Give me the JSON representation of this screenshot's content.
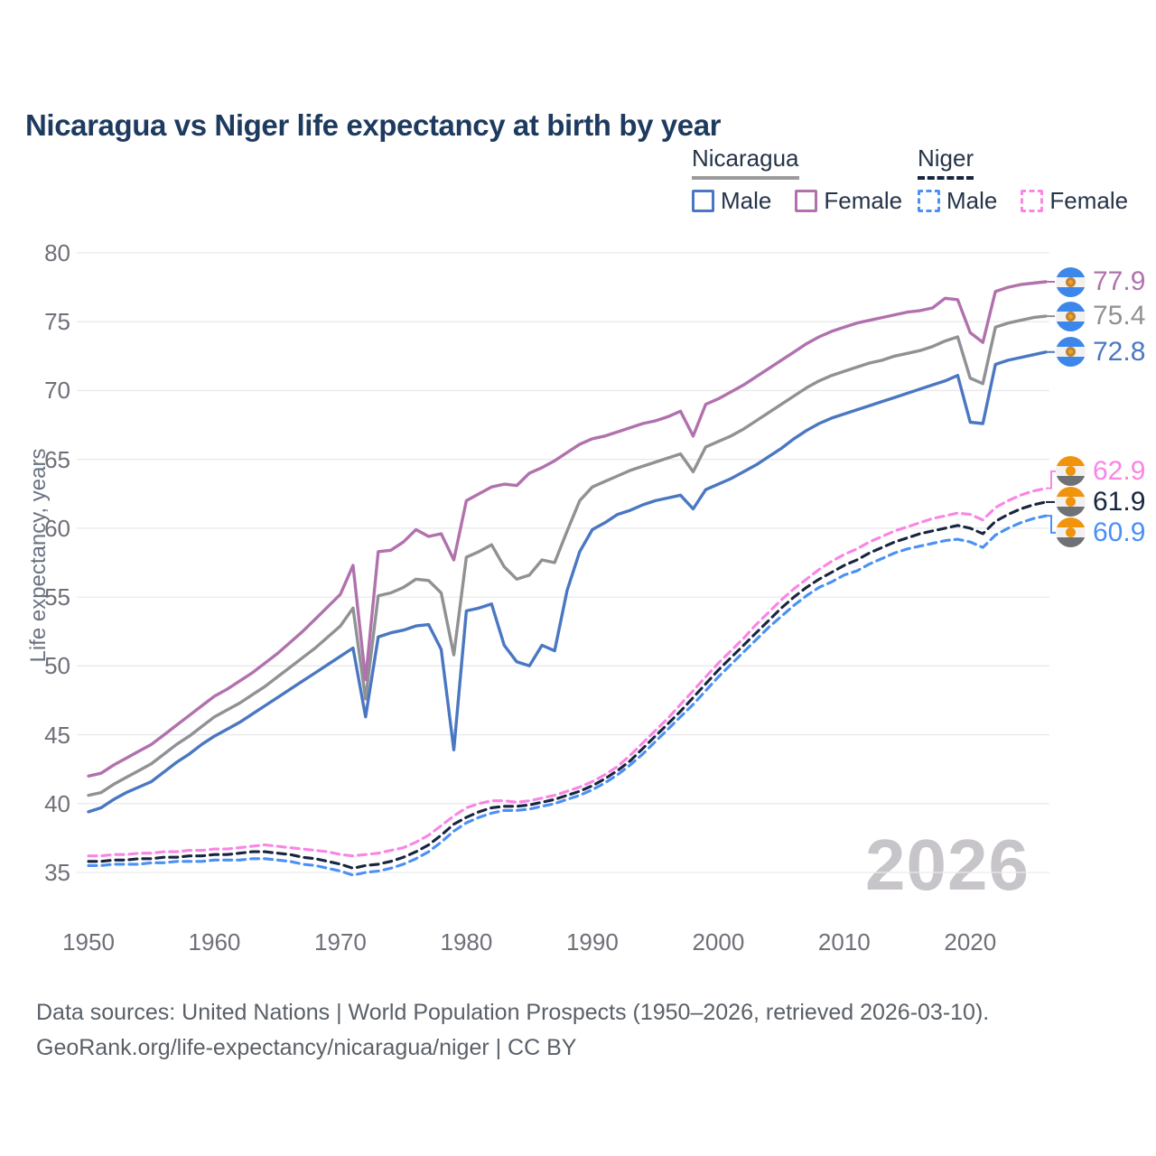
{
  "title": "Nicaragua vs Niger life expectancy at birth by year",
  "watermark": "2026",
  "y_axis": {
    "title": "Life expectancy, years",
    "ticks": [
      80,
      75,
      70,
      65,
      60,
      55,
      50,
      45,
      40,
      35
    ]
  },
  "x_axis": {
    "ticks": [
      "1950",
      "1960",
      "1970",
      "1980",
      "1990",
      "2000",
      "2010",
      "2020"
    ]
  },
  "legend": {
    "groups": [
      {
        "name": "Nicaragua",
        "line_style": "solid",
        "underline_color": "#9b9b9b",
        "items": [
          {
            "label": "Male",
            "color": "#4a77c2"
          },
          {
            "label": "Female",
            "color": "#b171ad"
          }
        ]
      },
      {
        "name": "Niger",
        "line_style": "dashed",
        "underline_color": "#18253f",
        "items": [
          {
            "label": "Male",
            "color": "#4a90f5"
          },
          {
            "label": "Female",
            "color": "#f985e4"
          }
        ]
      }
    ]
  },
  "end_labels": [
    {
      "series": "nicaragua-female",
      "text": "77.9",
      "value": 77.9,
      "color": "#b171ad",
      "flag": "nicaragua"
    },
    {
      "series": "nicaragua-both",
      "text": "75.4",
      "value": 75.4,
      "color": "#909194",
      "flag": "nicaragua"
    },
    {
      "series": "nicaragua-male",
      "text": "72.8",
      "value": 72.8,
      "color": "#4a77c2",
      "flag": "nicaragua"
    },
    {
      "series": "niger-female",
      "text": "62.9",
      "value": 62.9,
      "color": "#f985e4",
      "flag": "niger"
    },
    {
      "series": "niger-both",
      "text": "61.9",
      "value": 61.9,
      "color": "#18253f",
      "flag": "niger"
    },
    {
      "series": "niger-male",
      "text": "60.9",
      "value": 60.9,
      "color": "#4a90f5",
      "flag": "niger"
    }
  ],
  "footer": {
    "line1": "Data sources: United Nations | World Population Prospects (1950–2026, retrieved 2026-03-10).",
    "line2": "GeoRank.org/life-expectancy/nicaragua/niger | CC BY"
  },
  "chart_data": {
    "type": "line",
    "title": "Nicaragua vs Niger life expectancy at birth by year",
    "xlabel": "year",
    "ylabel": "Life expectancy, years",
    "year_range": [
      1950,
      2026
    ],
    "x_ticks": [
      1950,
      1960,
      1970,
      1980,
      1990,
      2000,
      2010,
      2020
    ],
    "y_ticks": [
      35,
      40,
      45,
      50,
      55,
      60,
      65,
      70,
      75,
      80
    ],
    "ylim": [
      35,
      80
    ],
    "grid": "horizontal",
    "legend_position": "top-right",
    "series": [
      {
        "id": "niger-male",
        "name": "Niger Male",
        "country": "Niger",
        "sex": "male",
        "style": "dashed",
        "color": "#4a90f5",
        "end_value": 60.9,
        "values": [
          35.5,
          35.5,
          35.6,
          35.6,
          35.6,
          35.7,
          35.7,
          35.8,
          35.8,
          35.8,
          35.9,
          35.9,
          35.9,
          36.0,
          36.0,
          35.9,
          35.8,
          35.6,
          35.5,
          35.3,
          35.1,
          34.8,
          35.0,
          35.1,
          35.3,
          35.6,
          36.0,
          36.5,
          37.2,
          38.0,
          38.6,
          39.0,
          39.3,
          39.5,
          39.5,
          39.6,
          39.8,
          40.0,
          40.3,
          40.6,
          41.0,
          41.5,
          42.1,
          42.8,
          43.6,
          44.5,
          45.4,
          46.3,
          47.2,
          48.2,
          49.2,
          50.1,
          51.0,
          51.9,
          52.8,
          53.6,
          54.4,
          55.1,
          55.7,
          56.1,
          56.6,
          56.9,
          57.4,
          57.8,
          58.2,
          58.5,
          58.7,
          58.9,
          59.1,
          59.2,
          59.0,
          58.6,
          59.5,
          60.0,
          60.4,
          60.7,
          60.9
        ]
      },
      {
        "id": "niger-both",
        "name": "Niger Both sexes",
        "country": "Niger",
        "sex": "both",
        "style": "dashed",
        "color": "#18253f",
        "end_value": 61.9,
        "values": [
          35.8,
          35.8,
          35.9,
          35.9,
          36.0,
          36.0,
          36.1,
          36.1,
          36.2,
          36.2,
          36.3,
          36.3,
          36.4,
          36.5,
          36.5,
          36.4,
          36.3,
          36.1,
          36.0,
          35.8,
          35.6,
          35.3,
          35.5,
          35.6,
          35.8,
          36.1,
          36.5,
          37.0,
          37.7,
          38.5,
          39.0,
          39.4,
          39.7,
          39.8,
          39.8,
          39.9,
          40.1,
          40.3,
          40.6,
          40.9,
          41.3,
          41.8,
          42.4,
          43.1,
          44.0,
          44.9,
          45.8,
          46.7,
          47.7,
          48.7,
          49.7,
          50.6,
          51.5,
          52.4,
          53.3,
          54.2,
          55.0,
          55.7,
          56.3,
          56.8,
          57.3,
          57.7,
          58.2,
          58.6,
          59.0,
          59.3,
          59.6,
          59.8,
          60.0,
          60.2,
          60.0,
          59.6,
          60.5,
          61.0,
          61.4,
          61.7,
          61.9
        ]
      },
      {
        "id": "niger-female",
        "name": "Niger Female",
        "country": "Niger",
        "sex": "female",
        "style": "dashed",
        "color": "#f985e4",
        "end_value": 62.9,
        "values": [
          36.2,
          36.2,
          36.3,
          36.3,
          36.4,
          36.4,
          36.5,
          36.5,
          36.6,
          36.6,
          36.7,
          36.7,
          36.8,
          36.9,
          37.0,
          36.9,
          36.8,
          36.7,
          36.6,
          36.5,
          36.3,
          36.2,
          36.3,
          36.4,
          36.6,
          36.8,
          37.2,
          37.7,
          38.4,
          39.1,
          39.7,
          40.0,
          40.2,
          40.2,
          40.1,
          40.2,
          40.4,
          40.6,
          40.9,
          41.2,
          41.6,
          42.1,
          42.7,
          43.5,
          44.4,
          45.3,
          46.2,
          47.2,
          48.2,
          49.2,
          50.2,
          51.1,
          52.0,
          53.0,
          53.9,
          54.8,
          55.6,
          56.3,
          57.0,
          57.6,
          58.1,
          58.5,
          59.0,
          59.4,
          59.8,
          60.1,
          60.4,
          60.7,
          60.9,
          61.1,
          61.0,
          60.6,
          61.5,
          62.0,
          62.4,
          62.7,
          62.9
        ]
      },
      {
        "id": "nicaragua-both",
        "name": "Nicaragua Both sexes",
        "country": "Nicaragua",
        "sex": "both",
        "style": "solid",
        "color": "#909194",
        "end_value": 75.4,
        "values": [
          40.6,
          40.8,
          41.4,
          41.9,
          42.4,
          42.9,
          43.6,
          44.3,
          44.9,
          45.6,
          46.3,
          46.8,
          47.3,
          47.9,
          48.5,
          49.2,
          49.9,
          50.6,
          51.3,
          52.1,
          52.9,
          54.2,
          47.6,
          55.1,
          55.3,
          55.7,
          56.3,
          56.2,
          55.3,
          50.8,
          57.9,
          58.3,
          58.8,
          57.2,
          56.3,
          56.6,
          57.7,
          57.5,
          59.8,
          62.0,
          63.0,
          63.4,
          63.8,
          64.2,
          64.5,
          64.8,
          65.1,
          65.4,
          64.1,
          65.9,
          66.3,
          66.7,
          67.2,
          67.8,
          68.4,
          69.0,
          69.6,
          70.2,
          70.7,
          71.1,
          71.4,
          71.7,
          72.0,
          72.2,
          72.5,
          72.7,
          72.9,
          73.2,
          73.6,
          73.9,
          70.9,
          70.5,
          74.6,
          74.9,
          75.1,
          75.3,
          75.4
        ]
      },
      {
        "id": "nicaragua-female",
        "name": "Nicaragua Female",
        "country": "Nicaragua",
        "sex": "female",
        "style": "solid",
        "color": "#b171ad",
        "end_value": 77.9,
        "values": [
          42.0,
          42.2,
          42.8,
          43.3,
          43.8,
          44.3,
          45.0,
          45.7,
          46.4,
          47.1,
          47.8,
          48.3,
          48.9,
          49.5,
          50.2,
          50.9,
          51.7,
          52.5,
          53.4,
          54.3,
          55.2,
          57.3,
          49.0,
          58.3,
          58.4,
          59.0,
          59.9,
          59.4,
          59.6,
          57.7,
          62.0,
          62.5,
          63.0,
          63.2,
          63.1,
          64.0,
          64.4,
          64.9,
          65.5,
          66.1,
          66.5,
          66.7,
          67.0,
          67.3,
          67.6,
          67.8,
          68.1,
          68.5,
          66.7,
          69.0,
          69.4,
          69.9,
          70.4,
          71.0,
          71.6,
          72.2,
          72.8,
          73.4,
          73.9,
          74.3,
          74.6,
          74.9,
          75.1,
          75.3,
          75.5,
          75.7,
          75.8,
          76.0,
          76.7,
          76.6,
          74.2,
          73.5,
          77.2,
          77.5,
          77.7,
          77.8,
          77.9
        ]
      },
      {
        "id": "nicaragua-male",
        "name": "Nicaragua Male",
        "country": "Nicaragua",
        "sex": "male",
        "style": "solid",
        "color": "#4a77c2",
        "end_value": 72.8,
        "values": [
          39.4,
          39.7,
          40.3,
          40.8,
          41.2,
          41.6,
          42.3,
          43.0,
          43.6,
          44.3,
          44.9,
          45.4,
          45.9,
          46.5,
          47.1,
          47.7,
          48.3,
          48.9,
          49.5,
          50.1,
          50.7,
          51.3,
          46.3,
          52.1,
          52.4,
          52.6,
          52.9,
          53.0,
          51.2,
          43.9,
          54.0,
          54.2,
          54.5,
          51.5,
          50.3,
          50.0,
          51.5,
          51.1,
          55.5,
          58.3,
          59.9,
          60.4,
          61.0,
          61.3,
          61.7,
          62.0,
          62.2,
          62.4,
          61.4,
          62.8,
          63.2,
          63.6,
          64.1,
          64.6,
          65.2,
          65.8,
          66.5,
          67.1,
          67.6,
          68.0,
          68.3,
          68.6,
          68.9,
          69.2,
          69.5,
          69.8,
          70.1,
          70.4,
          70.7,
          71.1,
          67.7,
          67.6,
          71.9,
          72.2,
          72.4,
          72.6,
          72.8
        ]
      }
    ]
  }
}
